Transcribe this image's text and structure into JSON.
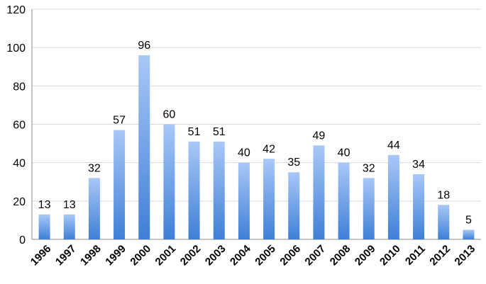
{
  "chart_data": {
    "type": "bar",
    "title": "",
    "xlabel": "",
    "ylabel": "",
    "categories": [
      "1996",
      "1997",
      "1998",
      "1999",
      "2000",
      "2001",
      "2002",
      "2003",
      "2004",
      "2005",
      "2006",
      "2007",
      "2008",
      "2009",
      "2010",
      "2011",
      "2012",
      "2013"
    ],
    "values": [
      13,
      13,
      32,
      57,
      96,
      60,
      51,
      51,
      40,
      42,
      35,
      49,
      40,
      32,
      44,
      34,
      18,
      5
    ],
    "ylim": [
      0,
      120
    ],
    "yticks": [
      0,
      20,
      40,
      60,
      80,
      100,
      120
    ],
    "grid": true,
    "legend": "none",
    "bar_color_top": "#a9c8f7",
    "bar_color_bottom": "#3f7fd6",
    "data_labels": true
  }
}
